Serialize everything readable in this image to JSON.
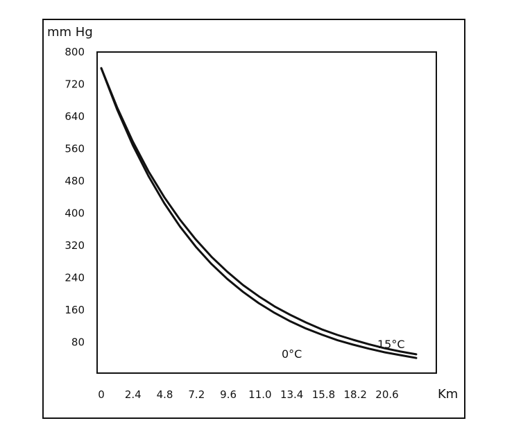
{
  "chart_data": {
    "type": "line",
    "title": "",
    "xlabel": "Km",
    "ylabel": "mm Hg",
    "x_ticks": [
      "0",
      "2.4",
      "4.8",
      "7.2",
      "9.6",
      "11.0",
      "13.4",
      "15.8",
      "18.2",
      "20.6"
    ],
    "y_ticks": [
      "800",
      "720",
      "640",
      "560",
      "480",
      "400",
      "320",
      "240",
      "160",
      "80"
    ],
    "xlim": [
      0,
      24
    ],
    "ylim": [
      0,
      800
    ],
    "grid": false,
    "legend": "none",
    "series": [
      {
        "name": "0°C",
        "x": [
          0,
          1.2,
          2.4,
          3.6,
          4.8,
          6.0,
          7.2,
          8.4,
          9.6,
          10.8,
          12.0,
          13.2,
          14.4,
          15.6,
          16.8,
          18.0,
          19.2,
          20.4,
          21.6,
          22.8,
          24.0
        ],
        "y": [
          760,
          658,
          569,
          492,
          425,
          367,
          317,
          274,
          237,
          205,
          177,
          153,
          132,
          114,
          99,
          85,
          74,
          64,
          55,
          48,
          41
        ]
      },
      {
        "name": "15°C",
        "x": [
          0,
          1.2,
          2.4,
          3.6,
          4.8,
          6.0,
          7.2,
          8.4,
          9.6,
          10.8,
          12.0,
          13.2,
          14.4,
          15.6,
          16.8,
          18.0,
          19.2,
          20.4,
          21.6,
          22.8,
          24.0
        ],
        "y": [
          760,
          663,
          578,
          504,
          440,
          384,
          335,
          292,
          255,
          222,
          194,
          169,
          148,
          129,
          112,
          98,
          86,
          75,
          65,
          57,
          50
        ]
      }
    ]
  }
}
